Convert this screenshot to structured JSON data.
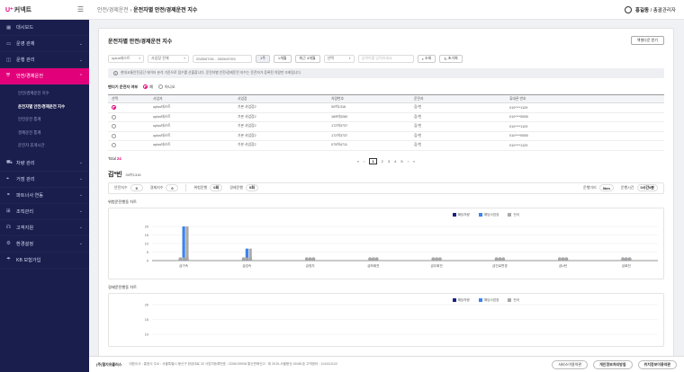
{
  "app": {
    "logo_mark": "U⁺",
    "logo_text": "커넥트"
  },
  "header": {
    "breadcrumb_parent": "안전/경제운전",
    "breadcrumb_current": "운전자별 안전/경제운전 지수",
    "user_name": "홍길동",
    "user_role": "/ 총괄관리자"
  },
  "sidebar": {
    "items": [
      {
        "label": "대시보드",
        "icon": "grid-icon"
      },
      {
        "label": "운영 관제",
        "icon": "monitor-icon"
      },
      {
        "label": "운행 관리",
        "icon": "truck-icon"
      },
      {
        "label": "안전/경제운전",
        "icon": "shield-icon",
        "active": true
      },
      {
        "label": "차량 관리",
        "icon": "car-icon"
      },
      {
        "label": "거점 관리",
        "icon": "pin-icon"
      },
      {
        "label": "파트너사 연동",
        "icon": "link-icon"
      },
      {
        "label": "조직관리",
        "icon": "org-icon"
      },
      {
        "label": "고객지원",
        "icon": "headset-icon"
      },
      {
        "label": "환경설정",
        "icon": "gear-icon"
      },
      {
        "label": "KB 보험가입",
        "icon": "umbrella-icon"
      }
    ],
    "sub_items": [
      {
        "label": "안전/경제운전 지수"
      },
      {
        "label": "운전자별 안전/경제운전 지수",
        "active": true
      },
      {
        "label": "안전운전 통계"
      },
      {
        "label": "경제운전 통계"
      },
      {
        "label": "운전자 휴게시간"
      }
    ]
  },
  "page": {
    "title": "운전자별 안전/경제운전 지수",
    "excel_label": "엑셀다운 받기"
  },
  "filter": {
    "site": "uplus테스트",
    "range_type": "사업장 전체",
    "date_range": "2025/07/01 - 2025/07/03",
    "d1": "1주",
    "d2": "1개월",
    "d3": "최근 3개월",
    "type": "선택",
    "search_placeholder": "검색어를 입력하세요",
    "search_label": "조회",
    "reset_label": "초기화"
  },
  "notice": "현대교통안전공단 데이터 분석 기준으로 점수를 산출합니다. 운전자별 안전/경제운전 지수는 운전자가 등록된 차량만 조회됩니다.",
  "radio": {
    "label": "팬더기 운전자 여부",
    "yes": "예",
    "no": "아니오"
  },
  "table": {
    "headers": [
      "선택",
      "사업자",
      "사업장",
      "차량번호",
      "운전자",
      "휴대폰 번호"
    ],
    "rows": [
      {
        "selected": true,
        "company": "uplus테스트",
        "site": "기본 사업장2",
        "plate": "00허1316",
        "driver": "김*빈",
        "phone": "010****1129"
      },
      {
        "selected": false,
        "company": "uplus테스트",
        "site": "기본 사업장2",
        "plate": "169머3260",
        "driver": "김*빈",
        "phone": "010****5555"
      },
      {
        "selected": false,
        "company": "uplus테스트",
        "site": "기본 사업장2",
        "plate": "172허3737",
        "driver": "김*빈",
        "phone": "010****1129"
      },
      {
        "selected": false,
        "company": "uplus테스트",
        "site": "기본 사업장2",
        "plate": "172허3737",
        "driver": "김*빈",
        "phone": "010****5555"
      },
      {
        "selected": false,
        "company": "uplus테스트",
        "site": "기본 사업장2",
        "plate": "075허4711",
        "driver": "김*빈",
        "phone": "010****1129"
      }
    ]
  },
  "total": {
    "label": "Total",
    "count": "24"
  },
  "pager": {
    "first": "«",
    "prev": "‹",
    "pages": [
      "1",
      "2",
      "3",
      "4",
      "5"
    ],
    "next": "›",
    "last": "»"
  },
  "driver": {
    "name": "김*빈",
    "plate": "00허1316"
  },
  "stats": {
    "safety_label": "안전지수",
    "safety_value": "0",
    "eco_label": "경제지수",
    "eco_value": "0",
    "danger_label": "위험운행",
    "danger_value": "0회",
    "eco_drive_label": "경제운행",
    "eco_drive_value": "0회",
    "distance_label": "운행거리",
    "distance_value": "0km",
    "time_label": "운행시간",
    "time_value": "0시간0분"
  },
  "chart_data": [
    {
      "type": "bar",
      "title": "위험운전행동 차트",
      "categories": [
        "급가속",
        "급감속",
        "급정지",
        "급좌회전",
        "급우회전",
        "급진로변경",
        "급U턴",
        "급회전"
      ],
      "series": [
        {
          "name": "해당차량",
          "color": "#1a237e",
          "values": [
            0,
            0,
            0,
            0,
            0,
            0,
            0,
            0
          ]
        },
        {
          "name": "해당사업장",
          "color": "#3d82ef",
          "values": [
            20,
            7,
            0,
            0,
            0,
            0,
            0,
            1
          ]
        },
        {
          "name": "전국",
          "color": "#a9a9a9",
          "values": [
            20,
            7,
            0,
            0,
            0,
            0,
            0,
            1
          ]
        }
      ],
      "ylim": [
        0,
        20
      ],
      "yticks": [
        0,
        5,
        10,
        15,
        20
      ]
    },
    {
      "type": "bar",
      "title": "경제운전행동 차트",
      "series": [
        {
          "name": "해당차량",
          "color": "#1a237e"
        },
        {
          "name": "해당사업장",
          "color": "#3d82ef"
        },
        {
          "name": "전국",
          "color": "#a9a9a9"
        }
      ],
      "ylim": [
        0,
        20
      ],
      "yticks": [
        10,
        15,
        20
      ]
    }
  ],
  "footer": {
    "company": "(주)엘지유플러스",
    "info": "대표이사 : 홍범식  주소 : 서울특별시 용산구 한강대로 32  사업자등록번호 : 2208139938  통신판매신고 : 제 2015-서울용산-00481호  고객센터 : 1141111122",
    "btn1": "서비스이용약관",
    "btn2": "개인정보처리방침",
    "btn3": "위치정보이용약관"
  }
}
